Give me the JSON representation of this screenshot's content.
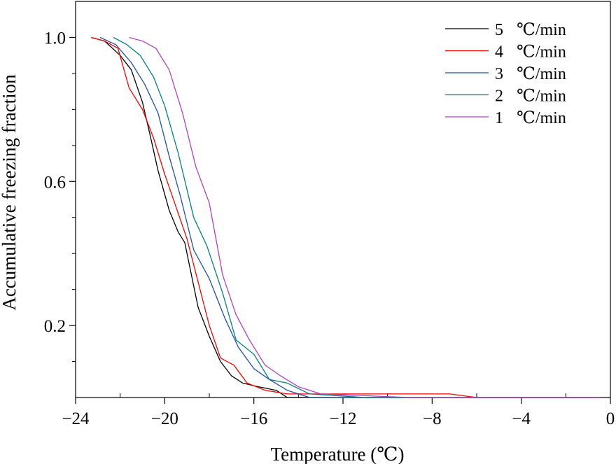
{
  "chart_data": {
    "type": "line",
    "title": "",
    "xlabel": "Temperature (℃)",
    "ylabel": "Accumulative freezing fraction",
    "xlim": [
      -24,
      0
    ],
    "ylim": [
      0,
      1.1
    ],
    "xticks": [
      -24,
      -20,
      -16,
      -12,
      -8,
      -4,
      0
    ],
    "xtick_labels": [
      "−24",
      "−20",
      "−16",
      "−12",
      "−8",
      "−4",
      "0"
    ],
    "xminor": [
      -22,
      -18,
      -14,
      -10,
      -6,
      -2
    ],
    "yticks": [
      0.2,
      0.6,
      1.0
    ],
    "ytick_labels": [
      "0.2",
      "0.6",
      "1.0"
    ],
    "yminor": [
      0.1,
      0.3,
      0.4,
      0.5,
      0.7,
      0.8,
      0.9
    ],
    "grid": false,
    "legend_position": "top-right",
    "series": [
      {
        "name": "5 ℃/min",
        "label_number": "5",
        "label_unit": "℃/min",
        "color": "#000000",
        "points": [
          [
            -23.3,
            1.0
          ],
          [
            -22.7,
            0.99
          ],
          [
            -22.0,
            0.95
          ],
          [
            -21.5,
            0.91
          ],
          [
            -21.0,
            0.82
          ],
          [
            -20.7,
            0.74
          ],
          [
            -20.3,
            0.63
          ],
          [
            -19.8,
            0.52
          ],
          [
            -19.4,
            0.46
          ],
          [
            -19.1,
            0.43
          ],
          [
            -18.8,
            0.34
          ],
          [
            -18.5,
            0.25
          ],
          [
            -18.0,
            0.17
          ],
          [
            -17.5,
            0.1
          ],
          [
            -17.0,
            0.06
          ],
          [
            -16.5,
            0.04
          ],
          [
            -15.8,
            0.03
          ],
          [
            -15.0,
            0.02
          ],
          [
            -14.5,
            0.0
          ],
          [
            -13.0,
            0.0
          ],
          [
            -6.0,
            0.0
          ],
          [
            -0.5,
            0.0
          ]
        ]
      },
      {
        "name": "4 ℃/min",
        "label_number": "4",
        "label_unit": "℃/min",
        "color": "#ff0000",
        "points": [
          [
            -23.3,
            1.0
          ],
          [
            -22.7,
            0.99
          ],
          [
            -22.1,
            0.97
          ],
          [
            -21.6,
            0.86
          ],
          [
            -21.0,
            0.8
          ],
          [
            -20.5,
            0.72
          ],
          [
            -20.0,
            0.62
          ],
          [
            -19.5,
            0.53
          ],
          [
            -19.0,
            0.44
          ],
          [
            -18.5,
            0.32
          ],
          [
            -18.0,
            0.2
          ],
          [
            -17.5,
            0.11
          ],
          [
            -16.9,
            0.09
          ],
          [
            -16.3,
            0.04
          ],
          [
            -15.5,
            0.02
          ],
          [
            -14.5,
            0.01
          ],
          [
            -13.5,
            0.01
          ],
          [
            -13.0,
            0.01
          ],
          [
            -10.0,
            0.01
          ],
          [
            -7.2,
            0.01
          ],
          [
            -6.0,
            0.0
          ],
          [
            -0.5,
            0.0
          ]
        ]
      },
      {
        "name": "3 ℃/min",
        "label_number": "3",
        "label_unit": "℃/min",
        "color": "#1f4fa8",
        "points": [
          [
            -22.9,
            1.0
          ],
          [
            -22.2,
            0.98
          ],
          [
            -21.5,
            0.93
          ],
          [
            -20.9,
            0.87
          ],
          [
            -20.3,
            0.79
          ],
          [
            -19.8,
            0.67
          ],
          [
            -19.3,
            0.56
          ],
          [
            -18.7,
            0.41
          ],
          [
            -18.0,
            0.33
          ],
          [
            -17.3,
            0.22
          ],
          [
            -16.7,
            0.14
          ],
          [
            -16.0,
            0.08
          ],
          [
            -15.3,
            0.05
          ],
          [
            -14.5,
            0.02
          ],
          [
            -13.5,
            0.0
          ],
          [
            -12.0,
            0.0
          ],
          [
            -8.0,
            0.0
          ],
          [
            -0.5,
            0.0
          ]
        ]
      },
      {
        "name": "2 ℃/min",
        "label_number": "2",
        "label_unit": "℃/min",
        "color": "#008080",
        "points": [
          [
            -22.3,
            1.0
          ],
          [
            -21.7,
            0.98
          ],
          [
            -21.1,
            0.95
          ],
          [
            -20.5,
            0.89
          ],
          [
            -20.0,
            0.81
          ],
          [
            -19.4,
            0.68
          ],
          [
            -18.7,
            0.5
          ],
          [
            -18.1,
            0.42
          ],
          [
            -17.4,
            0.29
          ],
          [
            -16.8,
            0.16
          ],
          [
            -16.0,
            0.12
          ],
          [
            -15.3,
            0.05
          ],
          [
            -14.5,
            0.04
          ],
          [
            -13.5,
            0.01
          ],
          [
            -11.0,
            0.0
          ],
          [
            -8.0,
            0.0
          ],
          [
            -0.5,
            0.0
          ]
        ]
      },
      {
        "name": "1 ℃/min",
        "label_number": "1",
        "label_unit": "℃/min",
        "color": "#b042c0",
        "points": [
          [
            -21.6,
            1.0
          ],
          [
            -21.0,
            0.99
          ],
          [
            -20.4,
            0.97
          ],
          [
            -19.8,
            0.91
          ],
          [
            -19.2,
            0.79
          ],
          [
            -18.6,
            0.64
          ],
          [
            -18.0,
            0.54
          ],
          [
            -17.4,
            0.34
          ],
          [
            -16.8,
            0.23
          ],
          [
            -16.2,
            0.16
          ],
          [
            -15.5,
            0.09
          ],
          [
            -14.8,
            0.06
          ],
          [
            -14.0,
            0.03
          ],
          [
            -13.0,
            0.01
          ],
          [
            -9.0,
            0.0
          ],
          [
            -0.5,
            0.0
          ]
        ]
      }
    ]
  }
}
